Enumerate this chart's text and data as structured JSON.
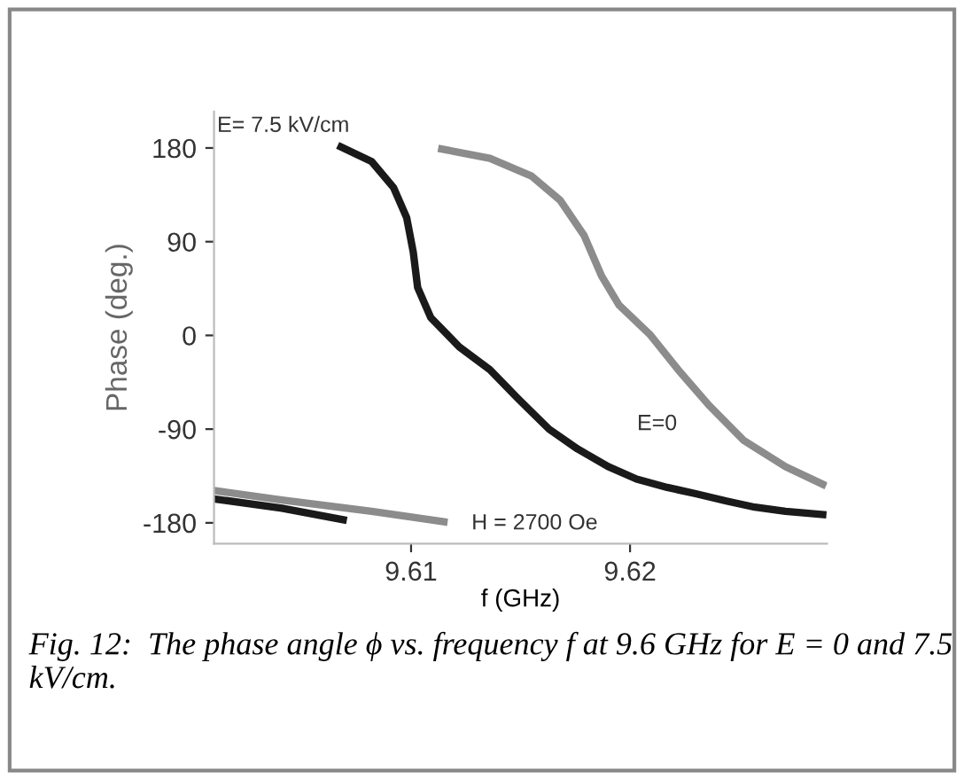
{
  "chart_data": {
    "type": "line",
    "xlabel": "f (GHz)",
    "ylabel": "Phase (deg.)",
    "series": [
      {
        "color": "#1a1a1a",
        "x": [
          9.601,
          9.6041,
          9.6069,
          null,
          9.6068,
          9.6082,
          9.6092,
          9.6098,
          9.6101,
          9.6103,
          9.6109,
          9.6122,
          9.6136,
          9.6149,
          9.6163,
          9.6176,
          9.619,
          9.6203,
          9.6217,
          9.623,
          9.6244,
          9.6257,
          9.6271,
          9.6288
        ],
        "values": [
          -157,
          -166,
          -177,
          null,
          181,
          167,
          142,
          113,
          80,
          46,
          17,
          -11,
          -33,
          -61,
          -90,
          -109,
          -126,
          -138,
          -146,
          -152,
          -159,
          -165,
          -169,
          -172
        ]
      },
      {
        "color": "#8c8c8c",
        "x": [
          9.601,
          9.6041,
          9.6082,
          9.6115,
          null,
          9.6114,
          9.6136,
          9.6155,
          9.6168,
          9.6179,
          9.6187,
          9.6195,
          9.6209,
          9.6222,
          9.6236,
          9.6252,
          9.6271,
          9.6288
        ],
        "values": [
          -149,
          -158,
          -169,
          -179,
          null,
          179,
          170,
          153,
          130,
          96,
          57,
          29,
          1,
          -33,
          -67,
          -101,
          -126,
          -143
        ]
      }
    ],
    "xlim": [
      9.601,
      9.629
    ],
    "ylim": [
      -200,
      215
    ],
    "xticks": [
      9.61,
      9.62
    ],
    "yticks": [
      -180,
      -90,
      0,
      90,
      180
    ],
    "grid": false,
    "annotations": [
      "E= 7.5 kV/cm",
      "E=0",
      "H = 2700 Oe",
      "Fig. 12:  The phase angle ϕ vs. frequency f at 9.6 GHz for E = 0 and 7.5 kV/cm."
    ]
  }
}
